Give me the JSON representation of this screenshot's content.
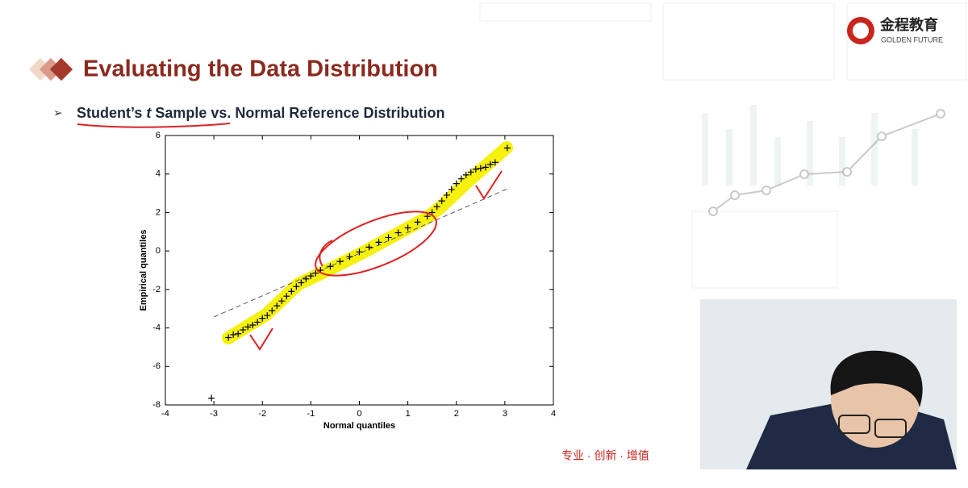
{
  "header": {
    "title": "Evaluating the Data Distribution",
    "bullet": [
      "Student’s ",
      "t",
      " Sample vs. Normal Reference Distribution"
    ]
  },
  "logo": {
    "name": "金程教育",
    "tagline": "GOLDEN FUTURE"
  },
  "footer": {
    "slogan": "专业 · 创新 · 增值"
  },
  "chart_data": {
    "type": "scatter",
    "xlabel": "Normal quantiles",
    "ylabel": "Empirical quantiles",
    "color": "#000000",
    "marker": "+",
    "x": [
      -3.05,
      -2.7,
      -2.6,
      -2.5,
      -2.4,
      -2.3,
      -2.2,
      -2.1,
      -2.0,
      -1.9,
      -1.8,
      -1.7,
      -1.6,
      -1.5,
      -1.4,
      -1.3,
      -1.2,
      -1.1,
      -1.0,
      -0.9,
      -0.8,
      -0.6,
      -0.4,
      -0.2,
      0,
      0.2,
      0.4,
      0.6,
      0.8,
      1.0,
      1.2,
      1.4,
      1.5,
      1.6,
      1.7,
      1.8,
      1.9,
      2.0,
      2.1,
      2.2,
      2.3,
      2.4,
      2.5,
      2.6,
      2.7,
      2.8,
      3.05
    ],
    "y": [
      -7.65,
      -4.5,
      -4.35,
      -4.3,
      -4.1,
      -3.95,
      -3.85,
      -3.7,
      -3.5,
      -3.35,
      -3.1,
      -2.85,
      -2.6,
      -2.35,
      -2.1,
      -1.85,
      -1.65,
      -1.45,
      -1.3,
      -1.15,
      -1.0,
      -0.8,
      -0.55,
      -0.3,
      -0.05,
      0.2,
      0.45,
      0.7,
      0.95,
      1.2,
      1.5,
      1.8,
      2.0,
      2.3,
      2.6,
      2.9,
      3.2,
      3.5,
      3.75,
      3.95,
      4.1,
      4.25,
      4.3,
      4.35,
      4.5,
      4.6,
      5.35
    ],
    "reference_line": {
      "x": [
        -3,
        3.1
      ],
      "y": [
        -3.43,
        3.28
      ],
      "color": "#555555",
      "dashed": true
    },
    "xlim": [
      -4,
      4
    ],
    "ylim": [
      -8,
      6
    ],
    "xticks": [
      -4,
      -3,
      -2,
      -1,
      0,
      1,
      2,
      3,
      4
    ],
    "yticks": [
      -8,
      -6,
      -4,
      -2,
      0,
      2,
      4,
      6
    ]
  }
}
